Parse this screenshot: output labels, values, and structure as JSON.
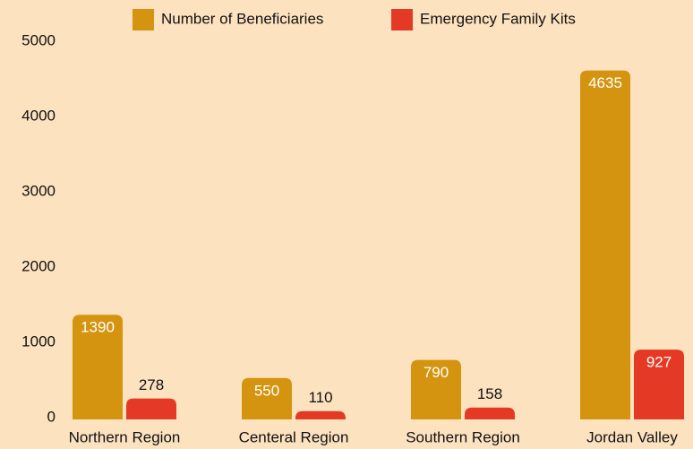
{
  "chart_data": {
    "type": "bar",
    "categories": [
      "Northern Region",
      "Centeral Region",
      "Southern Region",
      "Jordan Valley"
    ],
    "series": [
      {
        "name": "Number of Beneficiaries",
        "color": "#d4940f",
        "values": [
          1390,
          550,
          790,
          4635
        ]
      },
      {
        "name": "Emergency Family Kits",
        "color": "#e43a25",
        "values": [
          278,
          110,
          158,
          927
        ]
      }
    ],
    "ylim": [
      0,
      5000
    ],
    "yticks": [
      0,
      1000,
      2000,
      3000,
      4000,
      5000
    ],
    "grid": false,
    "legend": "top"
  }
}
